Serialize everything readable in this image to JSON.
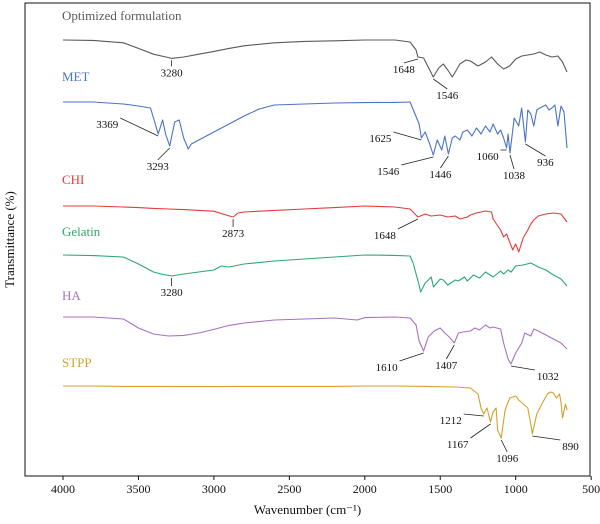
{
  "chart_data": {
    "type": "line",
    "xlabel": "Wavenumber (cm⁻¹)",
    "ylabel": "Transmittance (%)",
    "x_ticks": [
      4000,
      3500,
      3000,
      2500,
      2000,
      1500,
      1000,
      500
    ],
    "x_tick_labels": [
      "4000",
      "3500",
      "3000",
      "2500",
      "2000",
      "1500",
      "1000",
      "500"
    ],
    "xlim": [
      4000,
      500
    ],
    "x_reversed": true,
    "y_tick_labels": false,
    "grid": false,
    "legend": "inline labels at left",
    "series": [
      {
        "name": "Optimized formulation",
        "color": "#595959",
        "x": [
          4000,
          3800,
          3600,
          3500,
          3400,
          3300,
          3280,
          3200,
          3100,
          3000,
          2900,
          2800,
          2600,
          2400,
          2200,
          2000,
          1800,
          1700,
          1660,
          1648,
          1610,
          1580,
          1546,
          1510,
          1480,
          1450,
          1420,
          1400,
          1370,
          1330,
          1300,
          1250,
          1200,
          1160,
          1120,
          1080,
          1040,
          1000,
          960,
          920,
          880,
          840,
          800,
          760,
          720,
          690,
          660
        ],
        "y": [
          0.0,
          -0.02,
          -0.14,
          -0.42,
          -0.71,
          -0.88,
          -0.92,
          -0.85,
          -0.71,
          -0.57,
          -0.42,
          -0.29,
          -0.14,
          -0.07,
          -0.04,
          0.0,
          0.0,
          -0.1,
          -0.5,
          -0.85,
          -0.9,
          -1.35,
          -1.85,
          -1.4,
          -1.2,
          -1.5,
          -1.85,
          -1.6,
          -1.2,
          -1.0,
          -1.05,
          -1.3,
          -1.1,
          -0.85,
          -1.2,
          -1.45,
          -1.3,
          -0.95,
          -0.8,
          -0.75,
          -0.7,
          -0.6,
          -0.75,
          -0.85,
          -0.8,
          -1.1,
          -1.6
        ]
      },
      {
        "name": "MET",
        "color": "#4a74c4",
        "x": [
          4000,
          3800,
          3600,
          3500,
          3420,
          3400,
          3369,
          3340,
          3320,
          3293,
          3260,
          3230,
          3200,
          3170,
          3150,
          3100,
          3000,
          2900,
          2800,
          2700,
          2600,
          2400,
          2200,
          2000,
          1800,
          1700,
          1640,
          1625,
          1600,
          1570,
          1546,
          1520,
          1490,
          1470,
          1446,
          1420,
          1400,
          1370,
          1350,
          1320,
          1290,
          1260,
          1230,
          1200,
          1170,
          1150,
          1120,
          1100,
          1080,
          1060,
          1050,
          1038,
          1010,
          980,
          960,
          936,
          920,
          900,
          880,
          860,
          840,
          800,
          780,
          760,
          740,
          720,
          700,
          680,
          660
        ],
        "y": [
          0.0,
          0.0,
          -0.1,
          -0.2,
          -0.3,
          -0.8,
          -1.6,
          -0.9,
          -1.6,
          -2.2,
          -1.0,
          -0.9,
          -1.8,
          -2.35,
          -2.1,
          -1.9,
          -1.5,
          -1.1,
          -0.7,
          -0.35,
          -0.15,
          -0.1,
          -0.05,
          -0.03,
          -0.02,
          0.0,
          -1.1,
          -1.8,
          -1.5,
          -2.1,
          -2.65,
          -1.9,
          -2.4,
          -1.7,
          -2.6,
          -1.8,
          -1.7,
          -1.9,
          -1.5,
          -1.4,
          -1.7,
          -1.3,
          -1.6,
          -1.2,
          -1.5,
          -1.1,
          -1.6,
          -1.4,
          -1.8,
          -2.3,
          -1.6,
          -2.55,
          -0.8,
          -1.2,
          -0.3,
          -2.0,
          -0.4,
          -0.6,
          -1.2,
          -0.4,
          -0.3,
          -0.15,
          -0.4,
          -0.3,
          -0.15,
          -1.2,
          -0.2,
          -0.5,
          -2.3
        ]
      },
      {
        "name": "CHI",
        "color": "#e53b3b",
        "x": [
          4000,
          3800,
          3600,
          3500,
          3400,
          3300,
          3200,
          3100,
          3000,
          2920,
          2873,
          2840,
          2800,
          2600,
          2400,
          2200,
          2000,
          1800,
          1700,
          1648,
          1600,
          1560,
          1500,
          1450,
          1400,
          1370,
          1320,
          1300,
          1260,
          1200,
          1160,
          1150,
          1100,
          1080,
          1060,
          1040,
          1020,
          1000,
          980,
          950,
          920,
          900,
          880,
          850,
          800,
          750,
          700,
          660
        ],
        "y": [
          0.0,
          0.0,
          -0.05,
          -0.08,
          -0.12,
          -0.15,
          -0.18,
          -0.22,
          -0.26,
          -0.45,
          -0.55,
          -0.35,
          -0.3,
          -0.22,
          -0.15,
          -0.08,
          0.0,
          -0.05,
          -0.15,
          -0.55,
          -0.4,
          -0.5,
          -0.45,
          -0.55,
          -0.5,
          -0.65,
          -0.55,
          -0.45,
          -0.35,
          -0.25,
          -0.3,
          -0.65,
          -1.2,
          -1.55,
          -1.4,
          -1.8,
          -2.2,
          -1.9,
          -2.3,
          -1.6,
          -1.2,
          -0.9,
          -0.7,
          -0.5,
          -0.4,
          -0.35,
          -0.4,
          -0.8
        ]
      },
      {
        "name": "Gelatin",
        "color": "#2aa872",
        "x": [
          4000,
          3800,
          3600,
          3500,
          3400,
          3350,
          3280,
          3200,
          3100,
          3000,
          2950,
          2900,
          2800,
          2600,
          2400,
          2200,
          2000,
          1800,
          1700,
          1680,
          1640,
          1630,
          1600,
          1560,
          1545,
          1500,
          1480,
          1450,
          1400,
          1380,
          1340,
          1320,
          1280,
          1240,
          1200,
          1150,
          1100,
          1080,
          1050,
          1030,
          1000,
          950,
          900,
          850,
          800,
          750,
          700,
          660
        ],
        "y": [
          0.0,
          -0.03,
          -0.1,
          -0.45,
          -0.85,
          -0.95,
          -1.05,
          -0.95,
          -0.85,
          -0.75,
          -0.55,
          -0.6,
          -0.45,
          -0.3,
          -0.2,
          -0.1,
          0.0,
          -0.02,
          -0.05,
          -0.4,
          -1.5,
          -1.85,
          -1.4,
          -1.1,
          -1.6,
          -1.2,
          -1.25,
          -1.5,
          -1.25,
          -1.3,
          -1.1,
          -1.3,
          -1.0,
          -1.15,
          -0.85,
          -1.1,
          -0.8,
          -0.95,
          -0.75,
          -0.85,
          -0.55,
          -0.5,
          -0.4,
          -0.6,
          -0.75,
          -1.0,
          -1.2,
          -1.55
        ]
      },
      {
        "name": "HA",
        "color": "#a871c0",
        "x": [
          4000,
          3800,
          3600,
          3500,
          3400,
          3300,
          3200,
          3100,
          3000,
          2900,
          2800,
          2600,
          2400,
          2200,
          2050,
          2000,
          1800,
          1700,
          1660,
          1640,
          1610,
          1580,
          1540,
          1500,
          1470,
          1440,
          1407,
          1380,
          1350,
          1300,
          1270,
          1240,
          1200,
          1170,
          1150,
          1100,
          1080,
          1050,
          1032,
          1000,
          960,
          940,
          900,
          880,
          850,
          800,
          750,
          700,
          660
        ],
        "y": [
          0.0,
          0.0,
          -0.1,
          -0.55,
          -0.85,
          -0.95,
          -0.92,
          -0.8,
          -0.62,
          -0.42,
          -0.3,
          -0.15,
          -0.1,
          -0.05,
          -0.15,
          -0.03,
          0.0,
          -0.05,
          -0.4,
          -1.2,
          -1.7,
          -1.0,
          -0.7,
          -0.55,
          -0.8,
          -1.0,
          -1.3,
          -0.8,
          -0.75,
          -0.7,
          -0.55,
          -0.65,
          -0.4,
          -0.55,
          -0.5,
          -0.6,
          -1.3,
          -2.1,
          -2.35,
          -1.8,
          -1.3,
          -0.8,
          -0.95,
          -0.6,
          -0.7,
          -0.9,
          -1.1,
          -1.3,
          -1.6
        ]
      },
      {
        "name": "STPP",
        "color": "#d4a22a",
        "x": [
          4000,
          3800,
          3600,
          3400,
          3200,
          3000,
          2800,
          2600,
          2400,
          2200,
          2000,
          1800,
          1600,
          1400,
          1300,
          1250,
          1230,
          1212,
          1190,
          1167,
          1150,
          1130,
          1120,
          1096,
          1070,
          1040,
          1000,
          980,
          950,
          920,
          900,
          890,
          860,
          820,
          790,
          770,
          750,
          730,
          710,
          700,
          690,
          670,
          660
        ],
        "y": [
          0.0,
          0.0,
          -0.02,
          -0.02,
          -0.03,
          -0.03,
          -0.02,
          -0.02,
          -0.02,
          -0.02,
          0.0,
          0.0,
          -0.02,
          -0.05,
          -0.1,
          -0.4,
          -1.1,
          -1.4,
          -1.1,
          -1.8,
          -1.3,
          -1.1,
          -2.2,
          -2.6,
          -1.2,
          -0.6,
          -0.5,
          -0.7,
          -0.9,
          -1.1,
          -1.9,
          -2.4,
          -1.4,
          -0.8,
          -0.4,
          -0.3,
          -0.35,
          -0.6,
          -0.4,
          -0.8,
          -1.6,
          -0.9,
          -1.2
        ]
      }
    ],
    "annotations": [
      {
        "series": 0,
        "text": "3280",
        "x": 3280
      },
      {
        "series": 0,
        "text": "1648",
        "x": 1648
      },
      {
        "series": 0,
        "text": "1546",
        "x": 1546
      },
      {
        "series": 1,
        "text": "3369",
        "x": 3369
      },
      {
        "series": 1,
        "text": "3293",
        "x": 3293
      },
      {
        "series": 1,
        "text": "1625",
        "x": 1625
      },
      {
        "series": 1,
        "text": "1546",
        "x": 1546
      },
      {
        "series": 1,
        "text": "1446",
        "x": 1446
      },
      {
        "series": 1,
        "text": "1060",
        "x": 1060
      },
      {
        "series": 1,
        "text": "1038",
        "x": 1038
      },
      {
        "series": 1,
        "text": "936",
        "x": 936
      },
      {
        "series": 2,
        "text": "2873",
        "x": 2873
      },
      {
        "series": 2,
        "text": "1648",
        "x": 1648
      },
      {
        "series": 3,
        "text": "3280",
        "x": 3280
      },
      {
        "series": 4,
        "text": "1610",
        "x": 1610
      },
      {
        "series": 4,
        "text": "1407",
        "x": 1407
      },
      {
        "series": 4,
        "text": "1032",
        "x": 1032
      },
      {
        "series": 5,
        "text": "1212",
        "x": 1212
      },
      {
        "series": 5,
        "text": "1167",
        "x": 1167
      },
      {
        "series": 5,
        "text": "1096",
        "x": 1096
      },
      {
        "series": 5,
        "text": "890",
        "x": 890
      }
    ]
  }
}
